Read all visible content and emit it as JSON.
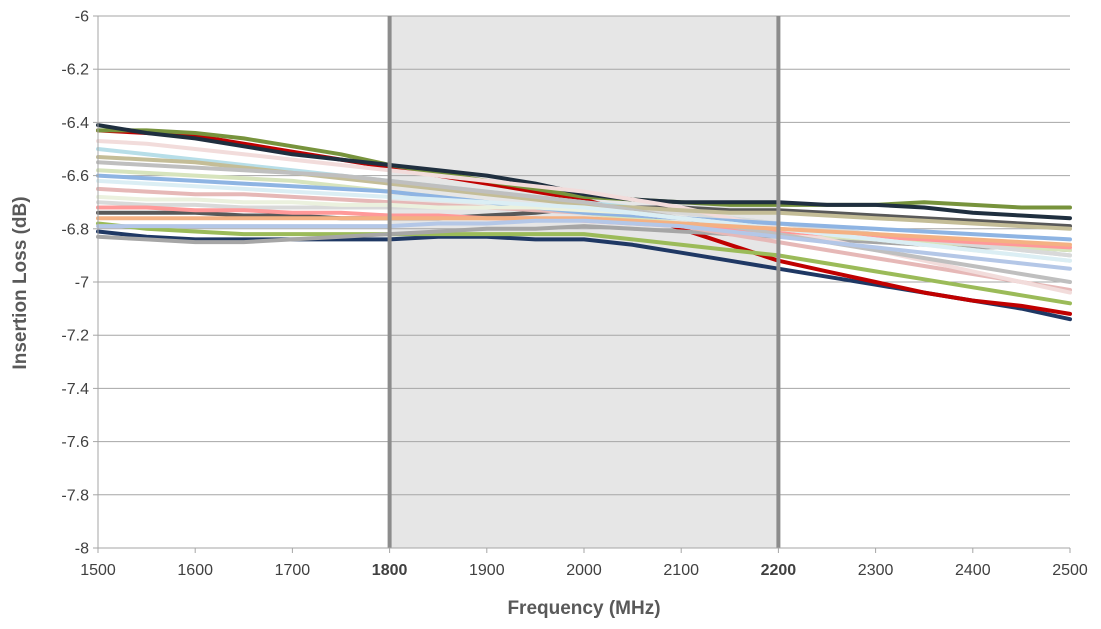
{
  "chart_data": {
    "type": "line",
    "title": "",
    "xlabel": "Frequency (MHz)",
    "ylabel": "Insertion Loss (dB)",
    "xlim": [
      1500,
      2500
    ],
    "ylim": [
      -8,
      -6
    ],
    "x_ticks": [
      {
        "value": 1500,
        "label": "1500",
        "bold": false
      },
      {
        "value": 1600,
        "label": "1600",
        "bold": false
      },
      {
        "value": 1700,
        "label": "1700",
        "bold": false
      },
      {
        "value": 1800,
        "label": "1800",
        "bold": true
      },
      {
        "value": 1900,
        "label": "1900",
        "bold": false
      },
      {
        "value": 2000,
        "label": "2000",
        "bold": false
      },
      {
        "value": 2100,
        "label": "2100",
        "bold": false
      },
      {
        "value": 2200,
        "label": "2200",
        "bold": true
      },
      {
        "value": 2300,
        "label": "2300",
        "bold": false
      },
      {
        "value": 2400,
        "label": "2400",
        "bold": false
      },
      {
        "value": 2500,
        "label": "2500",
        "bold": false
      }
    ],
    "y_ticks": [
      {
        "value": -6,
        "label": "-6"
      },
      {
        "value": -6.2,
        "label": "-6.2"
      },
      {
        "value": -6.4,
        "label": "-6.4"
      },
      {
        "value": -6.6,
        "label": "-6.6"
      },
      {
        "value": -6.8,
        "label": "-6.8"
      },
      {
        "value": -7,
        "label": "-7"
      },
      {
        "value": -7.2,
        "label": "-7.2"
      },
      {
        "value": -7.4,
        "label": "-7.4"
      },
      {
        "value": -7.6,
        "label": "-7.6"
      },
      {
        "value": -7.8,
        "label": "-7.8"
      },
      {
        "value": -8,
        "label": "-8"
      }
    ],
    "grid": true,
    "legend": "none",
    "band": {
      "from": 1800,
      "to": 2200,
      "fill": "#e6e6e6",
      "edge_color": "#8c8c8c"
    },
    "x": [
      1500,
      1550,
      1600,
      1650,
      1700,
      1750,
      1800,
      1850,
      1900,
      1950,
      2000,
      2050,
      2100,
      2150,
      2200,
      2250,
      2300,
      2350,
      2400,
      2450,
      2500
    ],
    "series": [
      {
        "color": "#1f3864",
        "values": [
          -6.81,
          -6.83,
          -6.84,
          -6.84,
          -6.84,
          -6.84,
          -6.84,
          -6.83,
          -6.83,
          -6.84,
          -6.84,
          -6.86,
          -6.89,
          -6.92,
          -6.95,
          -6.98,
          -7.01,
          -7.04,
          -7.07,
          -7.1,
          -7.14
        ]
      },
      {
        "color": "#c00000",
        "values": [
          -6.43,
          -6.44,
          -6.45,
          -6.48,
          -6.51,
          -6.54,
          -6.57,
          -6.6,
          -6.63,
          -6.66,
          -6.69,
          -6.74,
          -6.8,
          -6.86,
          -6.92,
          -6.96,
          -7.0,
          -7.04,
          -7.07,
          -7.09,
          -7.12
        ]
      },
      {
        "color": "#77933c",
        "values": [
          -6.43,
          -6.43,
          -6.44,
          -6.46,
          -6.49,
          -6.52,
          -6.56,
          -6.59,
          -6.62,
          -6.65,
          -6.68,
          -6.69,
          -6.7,
          -6.71,
          -6.71,
          -6.71,
          -6.71,
          -6.7,
          -6.71,
          -6.72,
          -6.72
        ]
      },
      {
        "color": "#1f2f3f",
        "values": [
          -6.41,
          -6.44,
          -6.46,
          -6.49,
          -6.52,
          -6.54,
          -6.56,
          -6.58,
          -6.6,
          -6.63,
          -6.67,
          -6.69,
          -6.7,
          -6.7,
          -6.7,
          -6.71,
          -6.71,
          -6.72,
          -6.74,
          -6.75,
          -6.76
        ]
      },
      {
        "color": "#595959",
        "values": [
          -6.74,
          -6.74,
          -6.74,
          -6.75,
          -6.75,
          -6.76,
          -6.76,
          -6.76,
          -6.75,
          -6.74,
          -6.72,
          -6.72,
          -6.72,
          -6.73,
          -6.73,
          -6.74,
          -6.75,
          -6.76,
          -6.77,
          -6.78,
          -6.79
        ]
      },
      {
        "color": "#9bbb59",
        "values": [
          -6.78,
          -6.8,
          -6.81,
          -6.82,
          -6.82,
          -6.82,
          -6.82,
          -6.82,
          -6.82,
          -6.82,
          -6.82,
          -6.84,
          -6.86,
          -6.88,
          -6.9,
          -6.93,
          -6.96,
          -6.99,
          -7.02,
          -7.05,
          -7.08
        ]
      },
      {
        "color": "#a6a6a6",
        "values": [
          -6.83,
          -6.84,
          -6.85,
          -6.85,
          -6.84,
          -6.83,
          -6.82,
          -6.81,
          -6.8,
          -6.8,
          -6.79,
          -6.8,
          -6.81,
          -6.82,
          -6.83,
          -6.84,
          -6.85,
          -6.86,
          -6.87,
          -6.87,
          -6.88
        ]
      },
      {
        "color": "#e6b8b7",
        "values": [
          -6.65,
          -6.66,
          -6.67,
          -6.67,
          -6.68,
          -6.69,
          -6.7,
          -6.71,
          -6.72,
          -6.73,
          -6.74,
          -6.76,
          -6.79,
          -6.82,
          -6.85,
          -6.88,
          -6.91,
          -6.94,
          -6.97,
          -7.0,
          -7.03
        ]
      },
      {
        "color": "#b7dee8",
        "values": [
          -6.5,
          -6.52,
          -6.54,
          -6.56,
          -6.58,
          -6.6,
          -6.62,
          -6.64,
          -6.66,
          -6.68,
          -6.7,
          -6.72,
          -6.74,
          -6.76,
          -6.78,
          -6.8,
          -6.82,
          -6.84,
          -6.86,
          -6.88,
          -6.9
        ]
      },
      {
        "color": "#d7e4bd",
        "values": [
          -6.58,
          -6.59,
          -6.6,
          -6.61,
          -6.62,
          -6.64,
          -6.66,
          -6.68,
          -6.7,
          -6.72,
          -6.74,
          -6.76,
          -6.78,
          -6.8,
          -6.82,
          -6.83,
          -6.84,
          -6.85,
          -6.86,
          -6.87,
          -6.88
        ]
      },
      {
        "color": "#d9d9d9",
        "values": [
          -6.7,
          -6.71,
          -6.71,
          -6.72,
          -6.72,
          -6.72,
          -6.72,
          -6.72,
          -6.72,
          -6.72,
          -6.72,
          -6.73,
          -6.74,
          -6.76,
          -6.78,
          -6.8,
          -6.82,
          -6.84,
          -6.86,
          -6.88,
          -6.9
        ]
      },
      {
        "color": "#f2dcdb",
        "values": [
          -6.47,
          -6.48,
          -6.5,
          -6.52,
          -6.54,
          -6.56,
          -6.58,
          -6.6,
          -6.62,
          -6.64,
          -6.66,
          -6.69,
          -6.72,
          -6.76,
          -6.8,
          -6.84,
          -6.88,
          -6.92,
          -6.96,
          -7.0,
          -7.04
        ]
      },
      {
        "color": "#c4bd97",
        "values": [
          -6.53,
          -6.54,
          -6.55,
          -6.57,
          -6.59,
          -6.61,
          -6.63,
          -6.65,
          -6.67,
          -6.69,
          -6.71,
          -6.72,
          -6.73,
          -6.74,
          -6.74,
          -6.75,
          -6.76,
          -6.77,
          -6.78,
          -6.79,
          -6.8
        ]
      },
      {
        "color": "#8eb4e3",
        "values": [
          -6.6,
          -6.61,
          -6.62,
          -6.63,
          -6.64,
          -6.65,
          -6.66,
          -6.68,
          -6.7,
          -6.72,
          -6.74,
          -6.75,
          -6.76,
          -6.77,
          -6.78,
          -6.79,
          -6.8,
          -6.81,
          -6.82,
          -6.83,
          -6.84
        ]
      },
      {
        "color": "#ff9999",
        "values": [
          -6.72,
          -6.72,
          -6.73,
          -6.73,
          -6.74,
          -6.74,
          -6.75,
          -6.75,
          -6.76,
          -6.76,
          -6.77,
          -6.78,
          -6.79,
          -6.8,
          -6.81,
          -6.82,
          -6.83,
          -6.84,
          -6.85,
          -6.86,
          -6.87
        ]
      },
      {
        "color": "#bfbfbf",
        "values": [
          -6.55,
          -6.56,
          -6.57,
          -6.58,
          -6.59,
          -6.6,
          -6.62,
          -6.64,
          -6.66,
          -6.68,
          -6.7,
          -6.73,
          -6.76,
          -6.79,
          -6.82,
          -6.85,
          -6.88,
          -6.91,
          -6.94,
          -6.97,
          -7.0
        ]
      },
      {
        "color": "#ebf1de",
        "values": [
          -6.68,
          -6.69,
          -6.69,
          -6.7,
          -6.7,
          -6.71,
          -6.71,
          -6.72,
          -6.72,
          -6.72,
          -6.73,
          -6.74,
          -6.76,
          -6.78,
          -6.8,
          -6.82,
          -6.84,
          -6.86,
          -6.88,
          -6.9,
          -6.92
        ]
      },
      {
        "color": "#dbeef4",
        "values": [
          -6.62,
          -6.63,
          -6.64,
          -6.65,
          -6.66,
          -6.67,
          -6.68,
          -6.69,
          -6.7,
          -6.71,
          -6.72,
          -6.74,
          -6.76,
          -6.78,
          -6.8,
          -6.82,
          -6.84,
          -6.86,
          -6.88,
          -6.9,
          -6.92
        ]
      },
      {
        "color": "#f4b183",
        "values": [
          -6.76,
          -6.76,
          -6.76,
          -6.76,
          -6.76,
          -6.76,
          -6.76,
          -6.76,
          -6.76,
          -6.76,
          -6.76,
          -6.77,
          -6.78,
          -6.79,
          -6.8,
          -6.81,
          -6.82,
          -6.83,
          -6.84,
          -6.85,
          -6.86
        ]
      },
      {
        "color": "#b4c7e7",
        "values": [
          -6.79,
          -6.79,
          -6.79,
          -6.79,
          -6.79,
          -6.79,
          -6.79,
          -6.78,
          -6.78,
          -6.77,
          -6.77,
          -6.78,
          -6.79,
          -6.81,
          -6.83,
          -6.85,
          -6.87,
          -6.89,
          -6.91,
          -6.93,
          -6.95
        ]
      }
    ]
  }
}
